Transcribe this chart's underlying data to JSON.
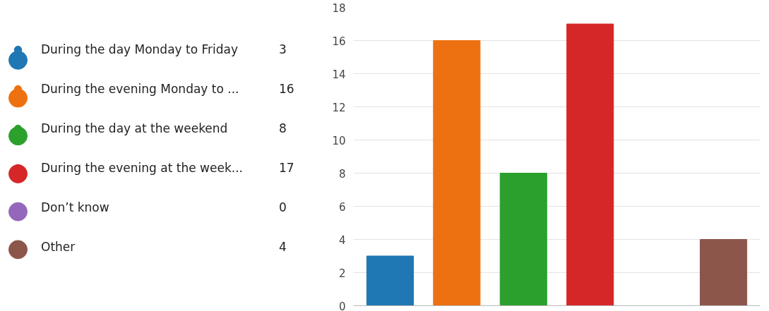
{
  "chart_data": {
    "type": "bar",
    "categories": [
      null,
      null,
      null,
      null,
      null,
      null
    ],
    "series": [
      {
        "name": "During the day Monday to Friday",
        "color": "#1f77b4",
        "values": [
          3,
          null,
          null,
          null,
          null,
          null
        ]
      },
      {
        "name": "During the evening Monday to ...",
        "color": "#ed7110",
        "values": [
          null,
          16,
          null,
          null,
          null,
          null
        ]
      },
      {
        "name": "During the day at the weekend",
        "color": "#2ca02c",
        "values": [
          null,
          null,
          8,
          null,
          null,
          null
        ]
      },
      {
        "name": "During the evening at the week...",
        "color": "#d62728",
        "values": [
          null,
          null,
          null,
          17,
          null,
          null
        ]
      },
      {
        "name": "Don’t know",
        "color": "#9467bd",
        "values": [
          null,
          null,
          null,
          null,
          0,
          null
        ]
      },
      {
        "name": "Other",
        "color": "#8c564b",
        "values": [
          null,
          null,
          null,
          null,
          null,
          4
        ]
      }
    ],
    "annotations": [
      "3",
      "16",
      "8",
      "17",
      "0",
      "4"
    ],
    "ylim": [
      0,
      18
    ],
    "yticks": [
      0,
      2,
      4,
      6,
      8,
      10,
      12,
      14,
      16,
      18
    ],
    "grid": "y",
    "legend": "left",
    "tick_labels": "y"
  }
}
